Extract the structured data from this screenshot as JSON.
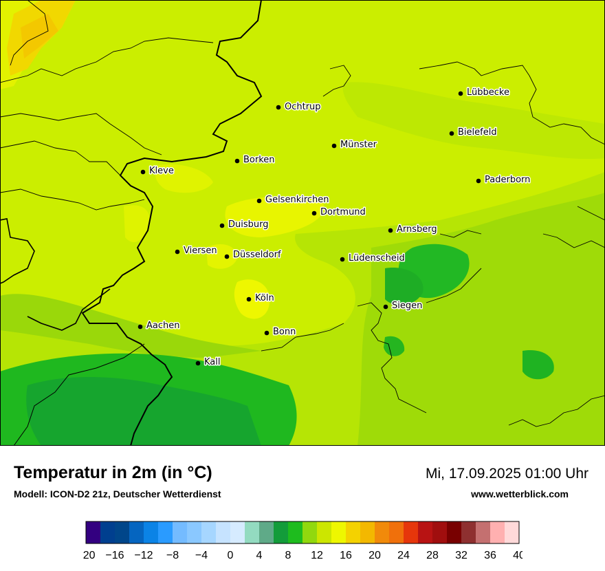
{
  "title": "Temperatur in 2m (in °C)",
  "model": "Modell: ICON-D2 21z, Deutscher Wetterdienst",
  "datetime": "Mi, 17.09.2025 01:00 Uhr",
  "website": "www.wetterblick.com",
  "cities": [
    {
      "name": "Lübbecke"
    },
    {
      "name": "Ochtrup"
    },
    {
      "name": "Bielefeld"
    },
    {
      "name": "Münster"
    },
    {
      "name": "Borken"
    },
    {
      "name": "Kleve"
    },
    {
      "name": "Paderborn"
    },
    {
      "name": "Gelsenkirchen"
    },
    {
      "name": "Dortmund"
    },
    {
      "name": "Duisburg"
    },
    {
      "name": "Arnsberg"
    },
    {
      "name": "Viersen"
    },
    {
      "name": "Düsseldorf"
    },
    {
      "name": "Lüdenscheid"
    },
    {
      "name": "Köln"
    },
    {
      "name": "Siegen"
    },
    {
      "name": "Aachen"
    },
    {
      "name": "Bonn"
    },
    {
      "name": "Kall"
    }
  ],
  "colorbar": {
    "unit": "°C",
    "min": -20,
    "max": 40,
    "tick_labels": [
      "−20",
      "−16",
      "−12",
      "−8",
      "−4",
      "0",
      "4",
      "8",
      "12",
      "16",
      "20",
      "24",
      "28",
      "32",
      "36",
      "40"
    ],
    "colors": [
      "#330080",
      "#003f8f",
      "#00468a",
      "#0565c0",
      "#0b83e6",
      "#2a9bff",
      "#74bbff",
      "#8ac8ff",
      "#a6d6ff",
      "#c6e3ff",
      "#d6ebff",
      "#93dbc0",
      "#5faa88",
      "#139c3a",
      "#1ebc1e",
      "#91d80e",
      "#cce600",
      "#eef700",
      "#f4d200",
      "#f3b800",
      "#f18a0a",
      "#f0700b",
      "#e6360b",
      "#b81313",
      "#a00e0e",
      "#780000",
      "#8e3030",
      "#c47070",
      "#ffb0b0",
      "#ffd9d9"
    ]
  }
}
